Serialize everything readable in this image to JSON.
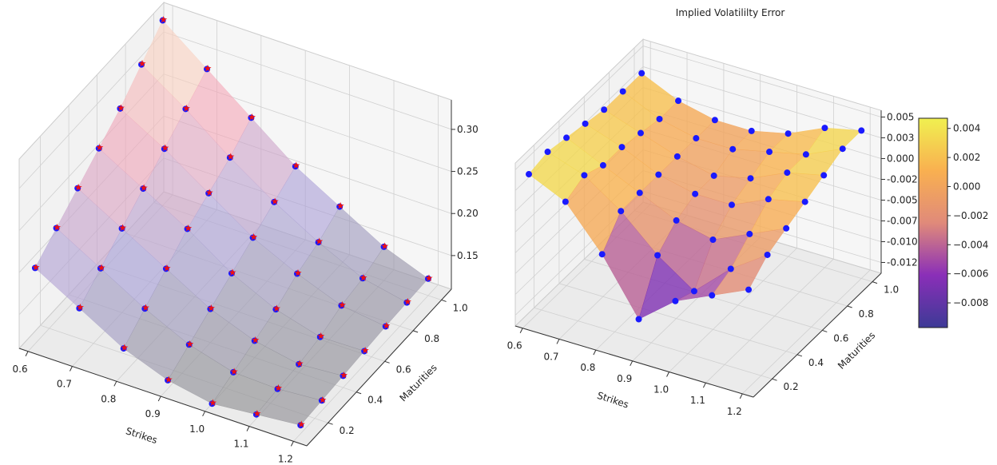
{
  "chart_data": [
    {
      "type": "surface3d",
      "title": "",
      "xlabel": "Strikes",
      "ylabel": "Maturities",
      "zlabel": "",
      "x_ticks": [
        "0.6",
        "0.7",
        "0.8",
        "0.9",
        "1.0",
        "1.1",
        "1.2"
      ],
      "y_ticks": [
        "0.2",
        "0.4",
        "0.6",
        "0.8",
        "1.0"
      ],
      "z_ticks": [
        "0.15",
        "0.20",
        "0.25",
        "0.30"
      ],
      "strikes": [
        0.6,
        0.7,
        0.8,
        0.9,
        1.0,
        1.1,
        1.2
      ],
      "maturities": [
        0.1,
        0.25,
        0.4,
        0.55,
        0.7,
        0.85,
        1.0
      ],
      "surface_values": [
        [
          0.2,
          0.17,
          0.14,
          0.12,
          0.11,
          0.115,
          0.12
        ],
        [
          0.22,
          0.19,
          0.16,
          0.135,
          0.12,
          0.118,
          0.122
        ],
        [
          0.24,
          0.21,
          0.18,
          0.15,
          0.13,
          0.12,
          0.124
        ],
        [
          0.26,
          0.23,
          0.2,
          0.165,
          0.14,
          0.125,
          0.126
        ],
        [
          0.28,
          0.25,
          0.215,
          0.18,
          0.155,
          0.135,
          0.128
        ],
        [
          0.305,
          0.27,
          0.23,
          0.195,
          0.165,
          0.14,
          0.129
        ],
        [
          0.33,
          0.29,
          0.25,
          0.21,
          0.18,
          0.15,
          0.13
        ]
      ],
      "markers": [
        {
          "shape": "circle",
          "color": "#1a1aff"
        },
        {
          "shape": "star",
          "color": "#ee1111"
        }
      ],
      "colors": [
        "#8c8c8c",
        "#a8a0d8",
        "#f4a8b8",
        "#fbf6c8"
      ],
      "grid": true
    },
    {
      "type": "surface3d",
      "title": "Implied Volatililty Error",
      "xlabel": "Strikes",
      "ylabel": "Maturities",
      "zlabel": "",
      "x_ticks": [
        "0.6",
        "0.7",
        "0.8",
        "0.9",
        "1.0",
        "1.1",
        "1.2"
      ],
      "y_ticks": [
        "0.2",
        "0.4",
        "0.6",
        "0.8",
        "1.0"
      ],
      "z_ticks": [
        "0.005",
        "0.003",
        "0.000",
        "-0.002",
        "-0.005",
        "-0.007",
        "-0.010",
        "-0.012"
      ],
      "strikes": [
        0.6,
        0.7,
        0.8,
        0.9,
        1.0,
        1.1,
        1.2
      ],
      "maturities": [
        0.1,
        0.25,
        0.4,
        0.55,
        0.7,
        0.85,
        1.0
      ],
      "surface_values": [
        [
          0.004,
          0.002,
          -0.003,
          -0.0095,
          -0.006,
          -0.004,
          -0.002
        ],
        [
          0.0045,
          0.003,
          0.0,
          -0.004,
          -0.007,
          -0.003,
          0.0
        ],
        [
          0.004,
          0.002,
          0.0,
          -0.002,
          -0.003,
          -0.001,
          0.001
        ],
        [
          0.0035,
          0.002,
          0.0,
          -0.001,
          -0.001,
          0.001,
          0.002
        ],
        [
          0.003,
          0.0015,
          0.0,
          -0.001,
          0.0,
          0.002,
          0.003
        ],
        [
          0.003,
          0.001,
          0.0,
          0.0,
          0.001,
          0.002,
          0.004
        ],
        [
          0.003,
          0.001,
          0.0,
          0.0,
          0.001,
          0.003,
          0.004
        ]
      ],
      "markers": [
        {
          "shape": "circle",
          "color": "#1a1aff"
        }
      ],
      "colormap": "plasma",
      "colors": [
        "#3d3a96",
        "#8a2fb8",
        "#e08a7a",
        "#f9b050",
        "#f0f050"
      ],
      "colorbar": {
        "ticks": [
          "0.004",
          "0.002",
          "0.000",
          "−0.002",
          "−0.004",
          "−0.006",
          "−0.008"
        ],
        "tick_values": [
          0.004,
          0.002,
          0.0,
          -0.002,
          -0.004,
          -0.006,
          -0.008
        ],
        "range": [
          -0.0097,
          0.0047
        ]
      },
      "grid": true
    }
  ]
}
